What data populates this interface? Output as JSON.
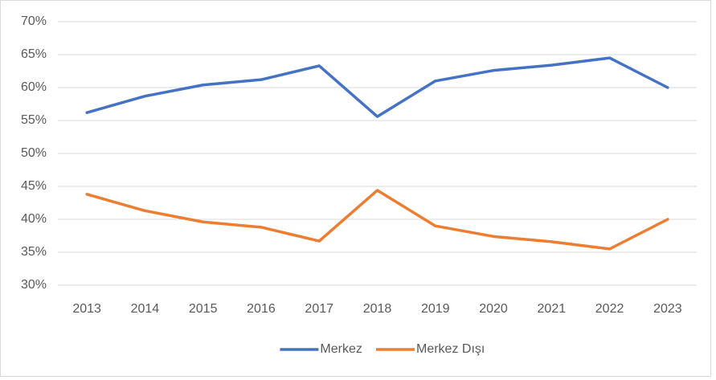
{
  "chart_data": {
    "type": "line",
    "categories": [
      "2013",
      "2014",
      "2015",
      "2016",
      "2017",
      "2018",
      "2019",
      "2020",
      "2021",
      "2022",
      "2023"
    ],
    "series": [
      {
        "name": "Merkez",
        "color": "#4472c4",
        "values": [
          56.2,
          58.7,
          60.4,
          61.2,
          63.3,
          55.6,
          61.0,
          62.6,
          63.4,
          64.5,
          60.0
        ]
      },
      {
        "name": "Merkez Dışı",
        "color": "#ed7d31",
        "values": [
          43.8,
          41.3,
          39.6,
          38.8,
          36.7,
          44.4,
          39.0,
          37.4,
          36.6,
          35.5,
          40.0
        ]
      }
    ],
    "ylim": [
      30,
      70
    ],
    "yticks": [
      {
        "value": 30,
        "label": "30%"
      },
      {
        "value": 35,
        "label": "35%"
      },
      {
        "value": 40,
        "label": "40%"
      },
      {
        "value": 45,
        "label": "45%"
      },
      {
        "value": 50,
        "label": "50%"
      },
      {
        "value": 55,
        "label": "55%"
      },
      {
        "value": 60,
        "label": "60%"
      },
      {
        "value": 65,
        "label": "65%"
      },
      {
        "value": 70,
        "label": "70%"
      }
    ],
    "grid": true,
    "legend": "bottom"
  }
}
